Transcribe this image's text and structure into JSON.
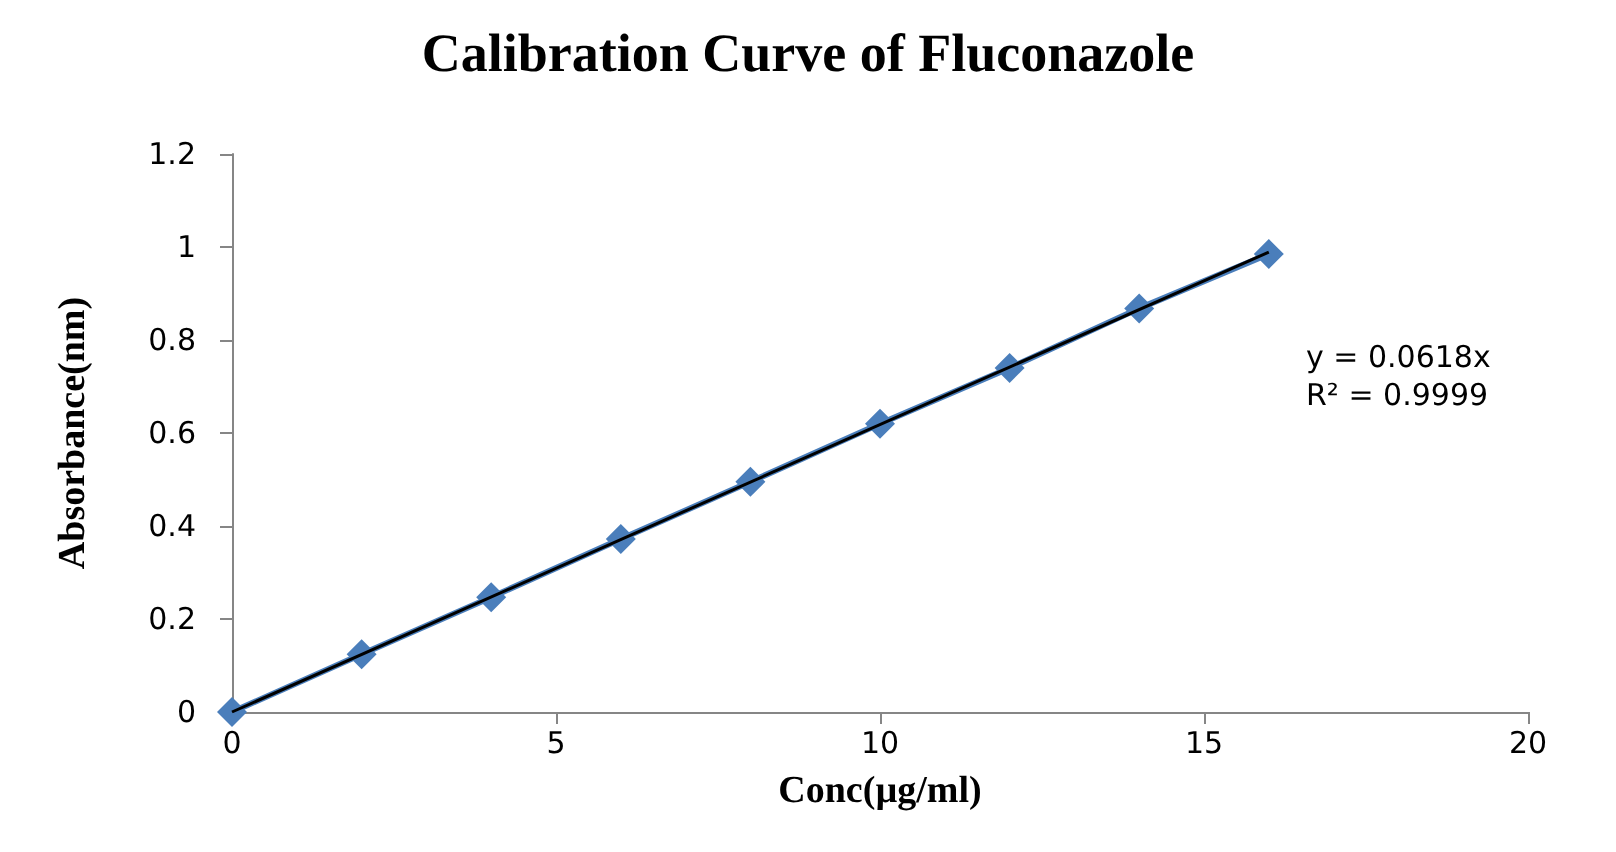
{
  "chart_data": {
    "type": "line",
    "title": "Calibration Curve of Fluconazole",
    "xlabel": "Conc(µg/ml)",
    "ylabel": "Absorbance(nm)",
    "x": [
      0,
      2,
      4,
      6,
      8,
      10,
      12,
      14,
      16
    ],
    "series": [
      {
        "color": "#4a7ebb",
        "values": [
          0,
          0.124,
          0.247,
          0.372,
          0.495,
          0.62,
          0.74,
          0.868,
          0.985
        ],
        "marker": "diamond"
      },
      {
        "type": "line",
        "color": "#000000",
        "x": [
          0,
          16
        ],
        "values": [
          0,
          0.989
        ],
        "marker": "none"
      }
    ],
    "xlim": [
      0,
      20
    ],
    "xticks": [
      0,
      5,
      10,
      15,
      20
    ],
    "ylim": [
      0,
      1.2
    ],
    "yticks": [
      0,
      0.2,
      0.4,
      0.6,
      0.8,
      1,
      1.2
    ],
    "annotations": [
      "y = 0.0618x",
      "R² = 0.9999"
    ],
    "grid": false
  }
}
